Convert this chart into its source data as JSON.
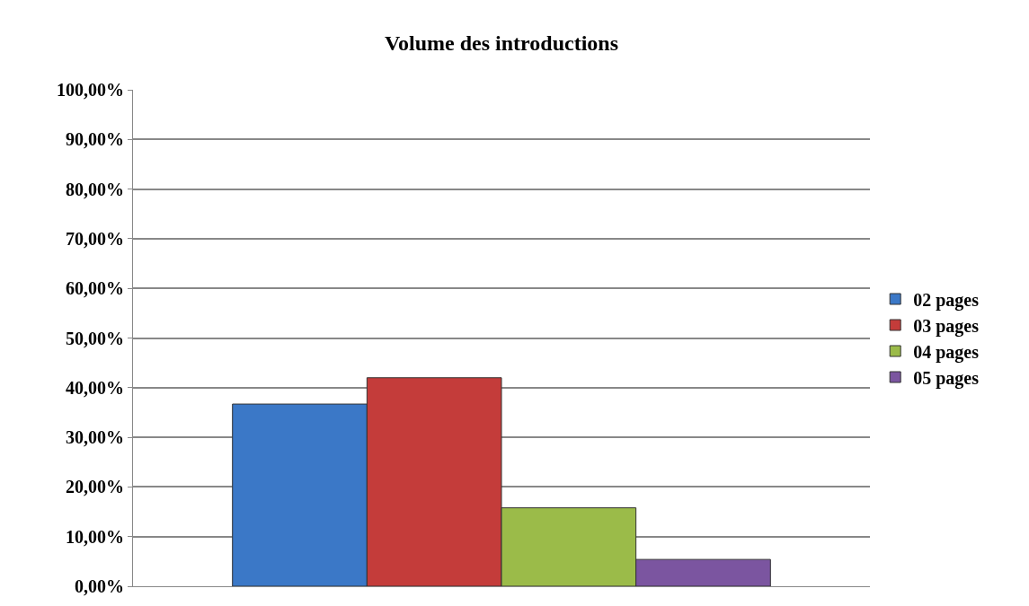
{
  "chart_data": {
    "type": "bar",
    "title": "Volume des introductions",
    "categories": [
      null
    ],
    "series": [
      {
        "name": "02 pages",
        "color": "#3b78c7",
        "values": [
          36.7
        ]
      },
      {
        "name": "03 pages",
        "color": "#c43c3a",
        "values": [
          42.0
        ]
      },
      {
        "name": "04 pages",
        "color": "#9bbb49",
        "values": [
          15.8
        ]
      },
      {
        "name": "05 pages",
        "color": "#7b55a0",
        "values": [
          5.4
        ]
      }
    ],
    "ylim": [
      0,
      100
    ],
    "yticks": [
      {
        "value": 0,
        "label": "0,00%"
      },
      {
        "value": 10,
        "label": "10,00%"
      },
      {
        "value": 20,
        "label": "20,00%"
      },
      {
        "value": 30,
        "label": "30,00%"
      },
      {
        "value": 40,
        "label": "40,00%"
      },
      {
        "value": 50,
        "label": "50,00%"
      },
      {
        "value": 60,
        "label": "60,00%"
      },
      {
        "value": 70,
        "label": "70,00%"
      },
      {
        "value": 80,
        "label": "80,00%"
      },
      {
        "value": 90,
        "label": "90,00%"
      },
      {
        "value": 100,
        "label": "100,00%"
      }
    ],
    "grid": "y",
    "legend": "right"
  }
}
